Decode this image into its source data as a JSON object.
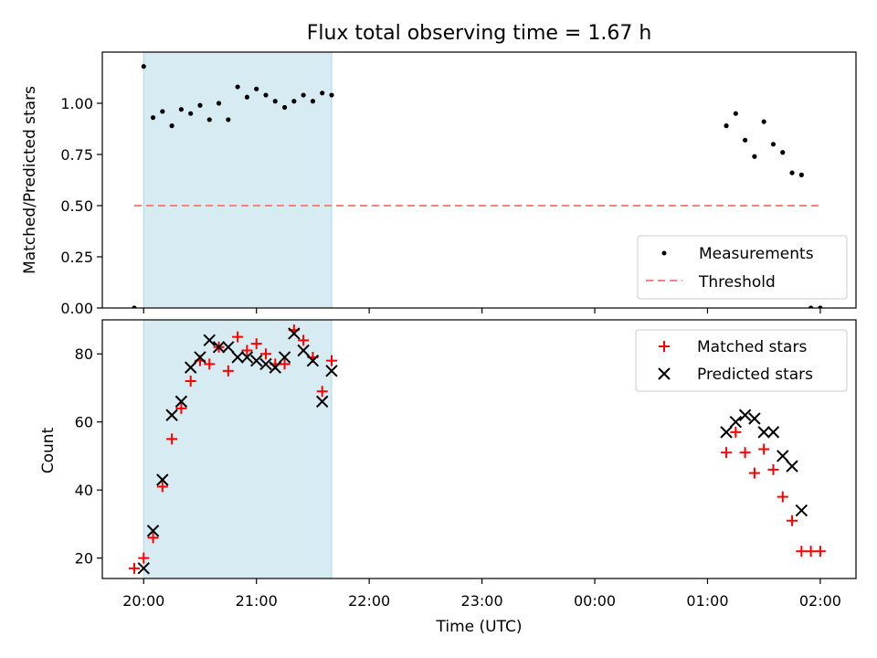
{
  "chart_data": [
    {
      "type": "scatter",
      "title": "Flux total observing time = 1.67 h",
      "ylabel": "Matched/Predicted stars",
      "ylim": [
        0,
        1.25
      ],
      "yticks": [
        "0.00",
        "0.25",
        "0.50",
        "0.75",
        "1.00"
      ],
      "x_range": [
        "19:38",
        "02:19"
      ],
      "highlight_span": [
        "20:00",
        "21:40"
      ],
      "highlight_color": "#add8e6",
      "legend_position": "lower right",
      "series": [
        {
          "name": "Measurements",
          "marker": "dot",
          "color": "#000000",
          "points": [
            [
              "19:55",
              0.0
            ],
            [
              "20:00",
              1.18
            ],
            [
              "20:05",
              0.93
            ],
            [
              "20:10",
              0.96
            ],
            [
              "20:15",
              0.89
            ],
            [
              "20:20",
              0.97
            ],
            [
              "20:25",
              0.95
            ],
            [
              "20:30",
              0.99
            ],
            [
              "20:35",
              0.92
            ],
            [
              "20:40",
              1.0
            ],
            [
              "20:45",
              0.92
            ],
            [
              "20:50",
              1.08
            ],
            [
              "20:55",
              1.03
            ],
            [
              "21:00",
              1.07
            ],
            [
              "21:05",
              1.04
            ],
            [
              "21:10",
              1.01
            ],
            [
              "21:15",
              0.98
            ],
            [
              "21:20",
              1.01
            ],
            [
              "21:25",
              1.04
            ],
            [
              "21:30",
              1.01
            ],
            [
              "21:35",
              1.05
            ],
            [
              "21:40",
              1.04
            ],
            [
              "01:10",
              0.89
            ],
            [
              "01:15",
              0.95
            ],
            [
              "01:20",
              0.82
            ],
            [
              "01:25",
              0.74
            ],
            [
              "01:30",
              0.91
            ],
            [
              "01:35",
              0.8
            ],
            [
              "01:40",
              0.76
            ],
            [
              "01:45",
              0.66
            ],
            [
              "01:50",
              0.65
            ],
            [
              "01:55",
              0.0
            ],
            [
              "02:00",
              0.0
            ]
          ]
        },
        {
          "name": "Threshold",
          "marker": "dashed-line",
          "color": "#ff7f7f",
          "points": [
            [
              "19:55",
              0.5
            ],
            [
              "02:00",
              0.5
            ]
          ]
        }
      ]
    },
    {
      "type": "scatter",
      "xlabel": "Time (UTC)",
      "ylabel": "Count",
      "ylim": [
        14,
        90
      ],
      "yticks": [
        "20",
        "40",
        "60",
        "80"
      ],
      "xticks": [
        "20:00",
        "21:00",
        "22:00",
        "23:00",
        "00:00",
        "01:00",
        "02:00"
      ],
      "x_range": [
        "19:38",
        "02:19"
      ],
      "highlight_span": [
        "20:00",
        "21:40"
      ],
      "highlight_color": "#add8e6",
      "legend_position": "upper right",
      "series": [
        {
          "name": "Matched stars",
          "marker": "plus",
          "color": "#ff0000",
          "points": [
            [
              "19:55",
              17
            ],
            [
              "20:00",
              20
            ],
            [
              "20:05",
              26
            ],
            [
              "20:10",
              41
            ],
            [
              "20:15",
              55
            ],
            [
              "20:20",
              64
            ],
            [
              "20:25",
              72
            ],
            [
              "20:30",
              78
            ],
            [
              "20:35",
              77
            ],
            [
              "20:40",
              82
            ],
            [
              "20:45",
              75
            ],
            [
              "20:50",
              85
            ],
            [
              "20:55",
              81
            ],
            [
              "21:00",
              83
            ],
            [
              "21:05",
              80
            ],
            [
              "21:10",
              77
            ],
            [
              "21:15",
              77
            ],
            [
              "21:20",
              87
            ],
            [
              "21:25",
              84
            ],
            [
              "21:30",
              79
            ],
            [
              "21:35",
              69
            ],
            [
              "21:40",
              78
            ],
            [
              "01:10",
              51
            ],
            [
              "01:15",
              57
            ],
            [
              "01:20",
              51
            ],
            [
              "01:25",
              45
            ],
            [
              "01:30",
              52
            ],
            [
              "01:35",
              46
            ],
            [
              "01:40",
              38
            ],
            [
              "01:45",
              31
            ],
            [
              "01:50",
              22
            ],
            [
              "01:55",
              22
            ],
            [
              "02:00",
              22
            ]
          ]
        },
        {
          "name": "Predicted stars",
          "marker": "x",
          "color": "#000000",
          "points": [
            [
              "20:00",
              17
            ],
            [
              "20:05",
              28
            ],
            [
              "20:10",
              43
            ],
            [
              "20:15",
              62
            ],
            [
              "20:20",
              66
            ],
            [
              "20:25",
              76
            ],
            [
              "20:30",
              79
            ],
            [
              "20:35",
              84
            ],
            [
              "20:40",
              82
            ],
            [
              "20:45",
              82
            ],
            [
              "20:50",
              79
            ],
            [
              "20:55",
              79
            ],
            [
              "21:00",
              78
            ],
            [
              "21:05",
              77
            ],
            [
              "21:10",
              76
            ],
            [
              "21:15",
              79
            ],
            [
              "21:20",
              86
            ],
            [
              "21:25",
              81
            ],
            [
              "21:30",
              78
            ],
            [
              "21:35",
              66
            ],
            [
              "21:40",
              75
            ],
            [
              "01:10",
              57
            ],
            [
              "01:15",
              60
            ],
            [
              "01:20",
              62
            ],
            [
              "01:25",
              61
            ],
            [
              "01:30",
              57
            ],
            [
              "01:35",
              57
            ],
            [
              "01:40",
              50
            ],
            [
              "01:45",
              47
            ],
            [
              "01:50",
              34
            ]
          ]
        }
      ]
    }
  ]
}
